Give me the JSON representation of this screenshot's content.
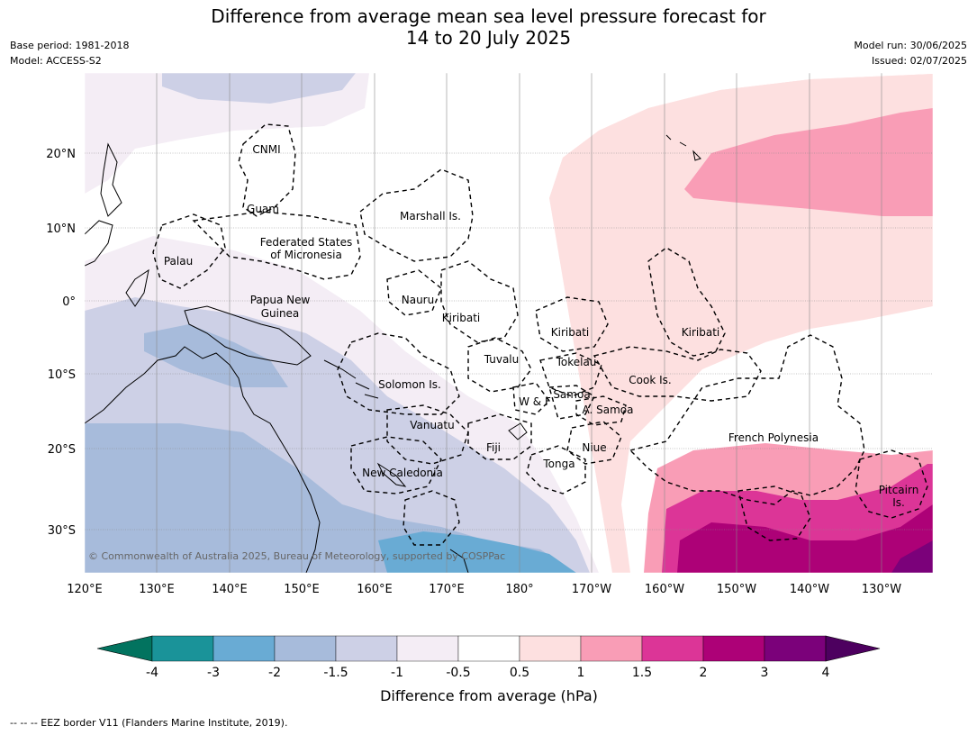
{
  "title": {
    "line1": "Difference from average mean sea level pressure forecast for",
    "line2": "14 to 20 July 2025"
  },
  "header_left": {
    "base_period": "Base period: 1981-2018",
    "model": "Model: ACCESS-S2"
  },
  "header_right": {
    "model_run": "Model run: 30/06/2025",
    "issued": "Issued: 02/07/2025"
  },
  "map": {
    "lon_ticks": [
      "120°E",
      "130°E",
      "140°E",
      "150°E",
      "160°E",
      "170°E",
      "180°",
      "170°W",
      "160°W",
      "150°W",
      "140°W",
      "130°W"
    ],
    "lat_ticks": [
      "20°N",
      "10°N",
      "0°",
      "10°S",
      "20°S",
      "30°S"
    ],
    "regions": [
      {
        "name": "CNMI"
      },
      {
        "name": "Guam"
      },
      {
        "name": "Marshall Is."
      },
      {
        "name": "Federated States"
      },
      {
        "name": "of Micronesia"
      },
      {
        "name": "Palau"
      },
      {
        "name": "Papua New"
      },
      {
        "name": "Guinea"
      },
      {
        "name": "Nauru"
      },
      {
        "name": "Kiribati"
      },
      {
        "name": "Kiribati"
      },
      {
        "name": "Kiribati"
      },
      {
        "name": "Tuvalu"
      },
      {
        "name": "Tokelau"
      },
      {
        "name": "Cook Is."
      },
      {
        "name": "Solomon Is."
      },
      {
        "name": "W & F"
      },
      {
        "name": "Samoa"
      },
      {
        "name": "A. Samoa"
      },
      {
        "name": "Vanuatu"
      },
      {
        "name": "Fiji"
      },
      {
        "name": "Niue"
      },
      {
        "name": "Tonga"
      },
      {
        "name": "New Caledonia"
      },
      {
        "name": "French Polynesia"
      },
      {
        "name": "Pitcairn"
      },
      {
        "name": "Is."
      }
    ],
    "copyright": "© Commonwealth of Australia 2025, Bureau of Meteorology, supported by COSPPac"
  },
  "colorbar": {
    "ticks": [
      "-4",
      "-3",
      "-2",
      "-1.5",
      "-1",
      "-0.5",
      "0.5",
      "1",
      "1.5",
      "2",
      "3",
      "4"
    ],
    "colors": [
      "#1a9399",
      "#69abd4",
      "#a7bbdb",
      "#cdd0e6",
      "#f4edf5",
      "#ffffff",
      "#fde0e0",
      "#f99db6",
      "#dc3597",
      "#ad0177",
      "#7b017a"
    ],
    "under_color": "#02735f",
    "over_color": "#4d005f",
    "label": "Difference from average (hPa)"
  },
  "footnote": "--  --  -- EEZ border V11 (Flanders Marine Institute, 2019)."
}
